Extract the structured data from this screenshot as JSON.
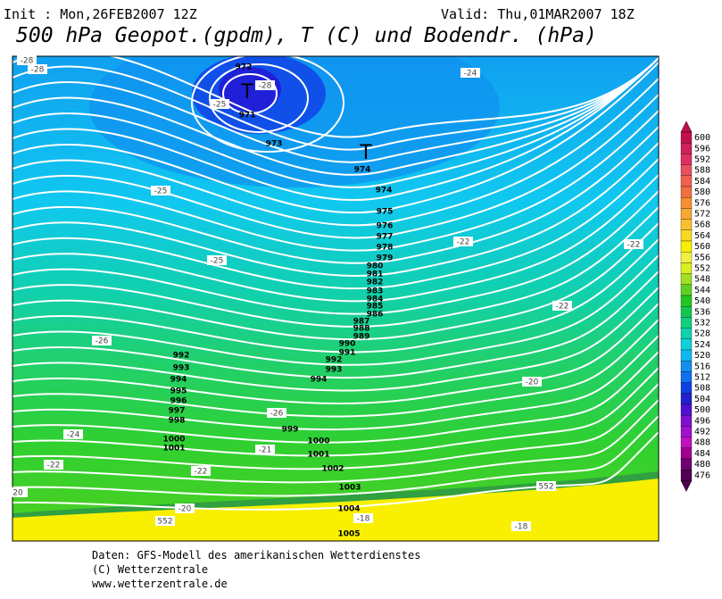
{
  "header": {
    "init": "Init : Mon,26FEB2007 12Z",
    "valid": "Valid: Thu,01MAR2007 18Z",
    "title": "500 hPa Geopot.(gpdm), T (C) und Bodendr. (hPa)"
  },
  "isobar_labels": [
    "972",
    "971",
    "973",
    "974",
    "974",
    "975",
    "976",
    "977",
    "978",
    "979",
    "980",
    "981",
    "982",
    "983",
    "984",
    "985",
    "986",
    "987",
    "988",
    "989",
    "990",
    "991",
    "992",
    "993",
    "994",
    "992",
    "993",
    "994",
    "995",
    "996",
    "997",
    "998",
    "999",
    "1000",
    "1000",
    "1001",
    "1001",
    "1002",
    "1003",
    "1004",
    "1005"
  ],
  "low_markers": [
    "T",
    "T"
  ],
  "temperature_labels": [
    "-28",
    "-28",
    "-28",
    "-25",
    "-24",
    "-25",
    "-25",
    "-22",
    "-22",
    "-22",
    "-26",
    "-20",
    "-26",
    "-24",
    "-21",
    "-22",
    "-22",
    "-20",
    "-18",
    "-18",
    "20",
    "552",
    "552"
  ],
  "colorbar": {
    "labels": [
      600,
      596,
      592,
      588,
      584,
      580,
      576,
      572,
      568,
      564,
      560,
      556,
      552,
      548,
      544,
      540,
      536,
      532,
      528,
      524,
      520,
      516,
      512,
      508,
      504,
      500,
      496,
      492,
      488,
      484,
      480,
      476
    ],
    "colors": [
      "#c0104a",
      "#d0205a",
      "#e03060",
      "#e85060",
      "#f06050",
      "#f07040",
      "#f89030",
      "#f8a830",
      "#f8c030",
      "#f8d820",
      "#f8f000",
      "#f0f040",
      "#d8f020",
      "#a0e020",
      "#60d020",
      "#20c820",
      "#10c850",
      "#10d080",
      "#10d0b0",
      "#10d0d8",
      "#10b8f0",
      "#1090f0",
      "#1070f0",
      "#1040e0",
      "#2020d0",
      "#5010d0",
      "#8010d0",
      "#a010d0",
      "#c010c0",
      "#a00090",
      "#700070",
      "#500050"
    ]
  },
  "footer": [
    "Daten: GFS-Modell des amerikanischen Wetterdienstes",
    "(C) Wetterzentrale",
    "www.wetterzentrale.de"
  ]
}
